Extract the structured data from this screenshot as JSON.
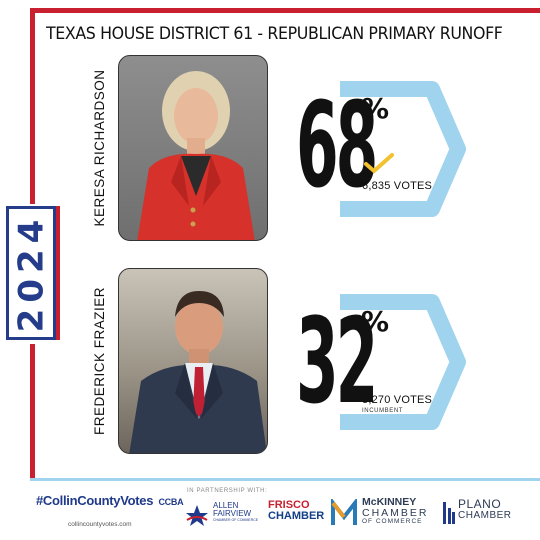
{
  "title": "TEXAS HOUSE DISTRICT 61 - REPUBLICAN PRIMARY RUNOFF",
  "year": "2024",
  "candidates": [
    {
      "name": "KERESA RICHARDSON",
      "percent": "68",
      "percent_sign": "%",
      "votes": "6,835 VOTES",
      "winner": true,
      "note": ""
    },
    {
      "name": "FREDERICK FRAZIER",
      "percent": "32",
      "percent_sign": "%",
      "votes": "3,270 VOTES",
      "winner": false,
      "note": "INCUMBENT"
    }
  ],
  "footer": {
    "brand": "#CollinCountyVotes",
    "brand_site": "collincountyvotes.com",
    "partnership": "IN PARTNERSHIP WITH:",
    "ccba": "CCBA",
    "allen_line1": "ALLEN",
    "allen_line2": "FAIRVIEW",
    "allen_line3": "CHAMBER OF COMMERCE",
    "frisco_line1": "FRISCO",
    "frisco_line2": "CHAMBER",
    "mckinney_line1": "McKINNEY",
    "mckinney_line2": "CHAMBER",
    "mckinney_line3": "OF COMMERCE",
    "plano_line1": "PLANO",
    "plano_line2": "CHAMBER"
  },
  "colors": {
    "red": "#c8202f",
    "navy": "#243c8a",
    "sky": "#9fd3ee",
    "check": "#f2c12e"
  }
}
